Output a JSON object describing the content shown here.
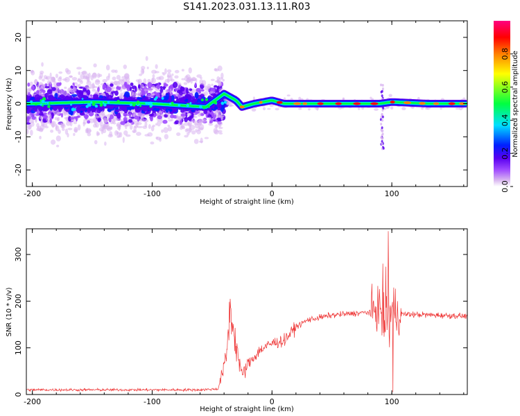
{
  "title": "S141.2023.031.13.11.R03",
  "chart_data": [
    {
      "type": "heatmap",
      "xlabel": "Height of straight line (km)",
      "ylabel": "Frequency (Hz)",
      "xlim": [
        -205,
        163
      ],
      "ylim": [
        -25,
        25
      ],
      "xticks": [
        -200,
        -100,
        0,
        100
      ],
      "yticks": [
        -20,
        -10,
        0,
        10,
        20
      ],
      "colorbar": {
        "label": "Normalized spectral amplitude",
        "range": [
          0,
          1
        ],
        "ticks": [
          "0.0",
          "0.2",
          "0.4",
          "0.6",
          "0.8"
        ],
        "colors": [
          "#ffffff",
          "#d8b4f0",
          "#a04cff",
          "#5a00f0",
          "#0020ff",
          "#00e0ff",
          "#00ff40",
          "#ffff00",
          "#ff8000",
          "#ff0000",
          "#ff0080"
        ]
      },
      "ridge": [
        {
          "x": -200,
          "y": 0
        },
        {
          "x": -150,
          "y": 0.5
        },
        {
          "x": -100,
          "y": 0
        },
        {
          "x": -55,
          "y": -1
        },
        {
          "x": -40,
          "y": 3
        },
        {
          "x": -30,
          "y": 1
        },
        {
          "x": -25,
          "y": -1
        },
        {
          "x": -15,
          "y": 0
        },
        {
          "x": 0,
          "y": 1
        },
        {
          "x": 10,
          "y": 0
        },
        {
          "x": 50,
          "y": 0
        },
        {
          "x": 90,
          "y": 0
        },
        {
          "x": 100,
          "y": 0.5
        },
        {
          "x": 130,
          "y": 0
        },
        {
          "x": 163,
          "y": 0
        }
      ]
    },
    {
      "type": "line",
      "xlabel": "Height of straight line (km)",
      "ylabel": "SNR (10 * v/v)",
      "xlim": [
        -205,
        163
      ],
      "ylim": [
        0,
        355
      ],
      "xticks": [
        -200,
        -100,
        0,
        100
      ],
      "yticks": [
        0,
        100,
        200,
        300
      ],
      "color": "#ee3333",
      "envelope": [
        {
          "x": -205,
          "y": 10
        },
        {
          "x": -60,
          "y": 10
        },
        {
          "x": -45,
          "y": 12
        },
        {
          "x": -38,
          "y": 80
        },
        {
          "x": -35,
          "y": 190
        },
        {
          "x": -31,
          "y": 120
        },
        {
          "x": -25,
          "y": 40
        },
        {
          "x": -20,
          "y": 65
        },
        {
          "x": -10,
          "y": 95
        },
        {
          "x": 0,
          "y": 110
        },
        {
          "x": 10,
          "y": 115
        },
        {
          "x": 20,
          "y": 145
        },
        {
          "x": 30,
          "y": 160
        },
        {
          "x": 50,
          "y": 170
        },
        {
          "x": 80,
          "y": 176
        },
        {
          "x": 90,
          "y": 185
        },
        {
          "x": 95,
          "y": 170
        },
        {
          "x": 100,
          "y": 175
        },
        {
          "x": 110,
          "y": 172
        },
        {
          "x": 163,
          "y": 168
        }
      ],
      "peaks": [
        {
          "x": -35,
          "y": 205
        },
        {
          "x": 97,
          "y": 350
        },
        {
          "x": 101,
          "y": 5
        }
      ]
    }
  ]
}
